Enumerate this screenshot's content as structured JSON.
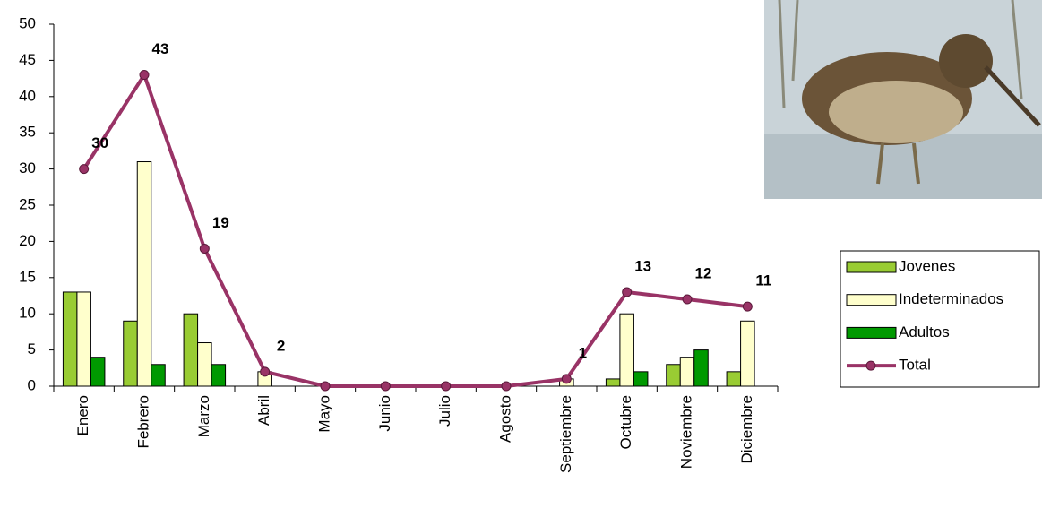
{
  "chart_data": {
    "type": "bar_line",
    "categories": [
      "Enero",
      "Febrero",
      "Marzo",
      "Abril",
      "Mayo",
      "Junio",
      "Julio",
      "Agosto",
      "Septiembre",
      "Octubre",
      "Noviembre",
      "Diciembre"
    ],
    "series": [
      {
        "name": "Jovenes",
        "type": "bar",
        "color": "#99cc33",
        "values": [
          13,
          9,
          10,
          0,
          0,
          0,
          0,
          0,
          0,
          1,
          3,
          2
        ]
      },
      {
        "name": "Indeterminados",
        "type": "bar",
        "color": "#ffffcc",
        "values": [
          13,
          31,
          6,
          2,
          0,
          0,
          0,
          0,
          1,
          10,
          4,
          9
        ]
      },
      {
        "name": "Adultos",
        "type": "bar",
        "color": "#009900",
        "values": [
          4,
          3,
          3,
          0,
          0,
          0,
          0,
          0,
          0,
          2,
          5,
          0
        ]
      },
      {
        "name": "Total",
        "type": "line",
        "color": "#993366",
        "values": [
          30,
          43,
          19,
          2,
          0,
          0,
          0,
          0,
          1,
          13,
          12,
          11
        ]
      }
    ],
    "ylim": [
      0,
      50
    ],
    "yticks": [
      0,
      5,
      10,
      15,
      20,
      25,
      30,
      35,
      40,
      45,
      50
    ],
    "legend": "right"
  }
}
